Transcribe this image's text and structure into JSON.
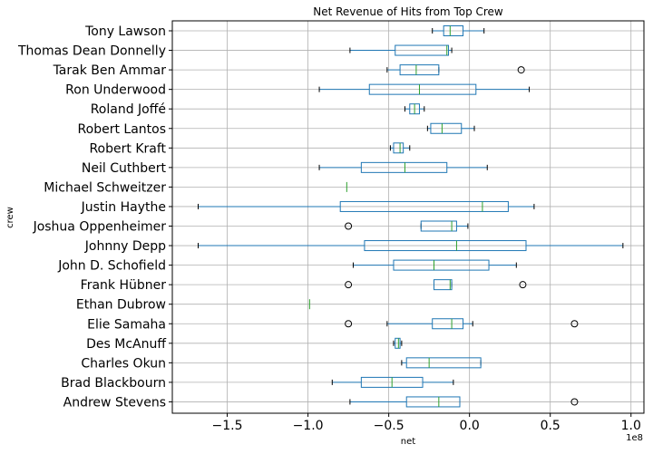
{
  "chart_data": {
    "type": "box",
    "orientation": "horizontal",
    "title": "Net Revenue of Hits from Top Crew",
    "xlabel": "net",
    "ylabel": "crew",
    "x_offset_label": "1e8",
    "xlim": [
      -1.84,
      1.08
    ],
    "x_ticks": [
      -1.5,
      -1.0,
      -0.5,
      0.0,
      0.5,
      1.0
    ],
    "x_tick_labels": [
      "−1.5",
      "−1.0",
      "−0.5",
      "0.0",
      "0.5",
      "1.0"
    ],
    "units_note": "values in units of 1e8",
    "grid": true,
    "series": [
      {
        "name": "Tony Lawson",
        "whislo": -0.23,
        "q1": -0.16,
        "med": -0.12,
        "q3": -0.04,
        "whishi": 0.09,
        "fliers": []
      },
      {
        "name": "Thomas Dean Donnelly",
        "whislo": -0.74,
        "q1": -0.46,
        "med": -0.14,
        "q3": -0.13,
        "whislo_note": "",
        "whishi": -0.11,
        "fliers": []
      },
      {
        "name": "Tarak Ben Ammar",
        "whislo": -0.51,
        "q1": -0.43,
        "med": -0.33,
        "q3": -0.19,
        "whishi": -0.19,
        "fliers": [
          0.32
        ]
      },
      {
        "name": "Ron Underwood",
        "whislo": -0.93,
        "q1": -0.62,
        "med": -0.31,
        "q3": 0.04,
        "whishi": 0.37,
        "fliers": []
      },
      {
        "name": "Roland Joffé",
        "whislo": -0.4,
        "q1": -0.37,
        "med": -0.34,
        "q3": -0.31,
        "whishi": -0.28,
        "fliers": []
      },
      {
        "name": "Robert Lantos",
        "whislo": -0.26,
        "q1": -0.24,
        "med": -0.17,
        "q3": -0.05,
        "whishi": 0.03,
        "fliers": []
      },
      {
        "name": "Robert Kraft",
        "whislo": -0.49,
        "q1": -0.47,
        "med": -0.43,
        "q3": -0.41,
        "whishi": -0.37,
        "fliers": []
      },
      {
        "name": "Neil Cuthbert",
        "whislo": -0.93,
        "q1": -0.67,
        "med": -0.4,
        "q3": -0.14,
        "whishi": 0.11,
        "fliers": []
      },
      {
        "name": "Michael Schweitzer",
        "whislo": -0.76,
        "q1": -0.76,
        "med": -0.76,
        "q3": -0.76,
        "whishi": -0.76,
        "fliers": []
      },
      {
        "name": "Justin Haythe",
        "whislo": -1.68,
        "q1": -0.8,
        "med": 0.08,
        "q3": 0.24,
        "whishi": 0.4,
        "fliers": []
      },
      {
        "name": "Joshua Oppenheimer",
        "whislo": -0.3,
        "q1": -0.3,
        "med": -0.11,
        "q3": -0.08,
        "whishi": -0.01,
        "fliers": [
          -0.75
        ]
      },
      {
        "name": "Johnny Depp",
        "whislo": -1.68,
        "q1": -0.65,
        "med": -0.08,
        "q3": 0.35,
        "whishi": 0.95,
        "fliers": []
      },
      {
        "name": "John D. Schofield",
        "whislo": -0.72,
        "q1": -0.47,
        "med": -0.22,
        "q3": 0.12,
        "whishi": 0.29,
        "fliers": []
      },
      {
        "name": "Frank Hübner",
        "whislo": -0.22,
        "q1": -0.22,
        "med": -0.12,
        "q3": -0.11,
        "whishi": -0.11,
        "fliers": [
          -0.75,
          0.33
        ]
      },
      {
        "name": "Ethan Dubrow",
        "whislo": -0.99,
        "q1": -0.99,
        "med": -0.99,
        "q3": -0.99,
        "whishi": -0.99,
        "fliers": []
      },
      {
        "name": "Elie Samaha",
        "whislo": -0.51,
        "q1": -0.23,
        "med": -0.11,
        "q3": -0.04,
        "whishi": 0.02,
        "fliers": [
          -0.75,
          0.65
        ]
      },
      {
        "name": "Des McAnuff",
        "whislo": -0.47,
        "q1": -0.46,
        "med": -0.44,
        "q3": -0.43,
        "whishi": -0.42,
        "fliers": []
      },
      {
        "name": "Charles Okun",
        "whislo": -0.42,
        "q1": -0.39,
        "med": -0.25,
        "q3": 0.07,
        "whishi": 0.07,
        "fliers": []
      },
      {
        "name": "Brad Blackbourn",
        "whislo": -0.85,
        "q1": -0.67,
        "med": -0.48,
        "q3": -0.29,
        "whishi": -0.1,
        "fliers": []
      },
      {
        "name": "Andrew Stevens",
        "whislo": -0.74,
        "q1": -0.39,
        "med": -0.19,
        "q3": -0.06,
        "whishi": -0.06,
        "fliers": [
          0.65
        ]
      }
    ]
  }
}
